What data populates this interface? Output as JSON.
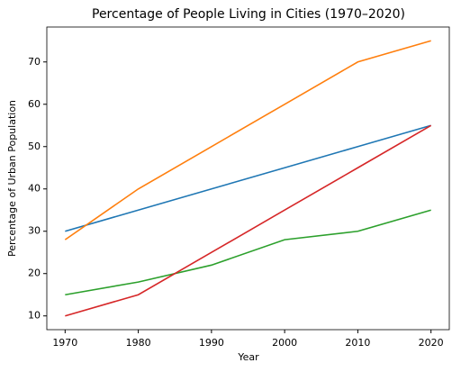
{
  "chart_data": {
    "type": "line",
    "title": "Percentage of People Living in Cities (1970–2020)",
    "x_label": "Year",
    "y_label": "Percentage of Urban Population",
    "x": [
      1970,
      1980,
      1990,
      2000,
      2010,
      2020
    ],
    "series": [
      {
        "color": "#1f77b4",
        "values": [
          30,
          35,
          40,
          45,
          50,
          55
        ]
      },
      {
        "color": "#ff7f0e",
        "values": [
          28,
          40,
          50,
          60,
          70,
          75
        ]
      },
      {
        "color": "#2ca02c",
        "values": [
          15,
          18,
          22,
          28,
          30,
          35
        ]
      },
      {
        "color": "#d62728",
        "values": [
          10,
          15,
          25,
          35,
          45,
          55
        ]
      }
    ],
    "xlim": [
      1967.5,
      2022.5
    ],
    "xticks": [
      1970,
      1980,
      1990,
      2000,
      2010,
      2020
    ],
    "ylim": [
      6.75,
      78.25
    ],
    "yticks": [
      10,
      20,
      30,
      40,
      50,
      60,
      70
    ],
    "grid": false
  }
}
